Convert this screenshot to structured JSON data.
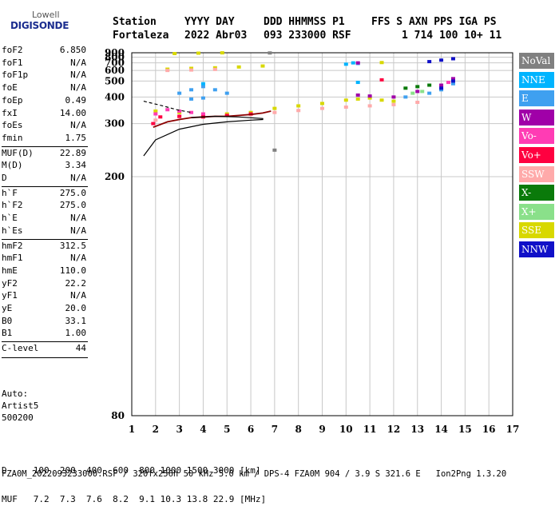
{
  "logo": {
    "line1": "Lowell",
    "line2": "DIGISONDE"
  },
  "header": {
    "labels": [
      "Station",
      "YYYY DAY",
      "DDD HHMMSS P1",
      "FFS S AXN PPS IGA PS"
    ],
    "values": [
      "Fortaleza",
      "2022 Abr03",
      "093 233000 RSF",
      "1 714 100 10+ 11"
    ]
  },
  "params": [
    {
      "label": "foF2",
      "value": "6.850"
    },
    {
      "label": "foF1",
      "value": "N/A"
    },
    {
      "label": "foF1p",
      "value": "N/A"
    },
    {
      "label": "foE",
      "value": "N/A"
    },
    {
      "label": "foEp",
      "value": "0.49"
    },
    {
      "label": "fxI",
      "value": "14.00"
    },
    {
      "label": "foEs",
      "value": "N/A"
    },
    {
      "label": "fmin",
      "value": "1.75"
    },
    {
      "label": "MUF(D)",
      "value": "22.89"
    },
    {
      "label": "M(D)",
      "value": "3.34"
    },
    {
      "label": "D",
      "value": "N/A"
    },
    {
      "label": "h`F",
      "value": "275.0"
    },
    {
      "label": "h`F2",
      "value": "275.0"
    },
    {
      "label": "h`E",
      "value": "N/A"
    },
    {
      "label": "h`Es",
      "value": "N/A"
    },
    {
      "label": "hmF2",
      "value": "312.5"
    },
    {
      "label": "hmF1",
      "value": "N/A"
    },
    {
      "label": "hmE",
      "value": "110.0"
    },
    {
      "label": "yF2",
      "value": "22.2"
    },
    {
      "label": "yF1",
      "value": "N/A"
    },
    {
      "label": "yE",
      "value": "20.0"
    },
    {
      "label": "B0",
      "value": "33.1"
    },
    {
      "label": "B1",
      "value": "1.00"
    },
    {
      "label": "C-level",
      "value": "44"
    }
  ],
  "auto": {
    "line1": "Auto:",
    "line2": "Artist5",
    "line3": "500200"
  },
  "legend": [
    {
      "label": "NoVal",
      "color": "#808080"
    },
    {
      "label": "NNE",
      "color": "#00b4ff"
    },
    {
      "label": "E",
      "color": "#3fa0f0"
    },
    {
      "label": "W",
      "color": "#a000a8"
    },
    {
      "label": "Vo-",
      "color": "#ff3cb4"
    },
    {
      "label": "Vo+",
      "color": "#ff0040"
    },
    {
      "label": "SSW",
      "color": "#ffaaaa"
    },
    {
      "label": "X-",
      "color": "#0a7a0a"
    },
    {
      "label": "X+",
      "color": "#8ae08a"
    },
    {
      "label": "SSE",
      "color": "#d8d800"
    },
    {
      "label": "NNW",
      "color": "#1010c8"
    }
  ],
  "bottom": {
    "d_line": "D     100  200  400  600  800 1000 1500 3000 [km]",
    "muf_line": "MUF   7.2  7.3  7.6  8.2  9.1 10.3 13.8 22.9 [MHz]"
  },
  "footer": "FZA0M_2022093233000.RSF / 320fx256h 50 kHz 5.0 km / DPS-4 FZA0M 904 / 3.9 S 321.6 E   Ion2Png 1.3.20",
  "chart_data": {
    "type": "scatter",
    "title": "",
    "xlabel": "",
    "ylabel": "",
    "xlim": [
      1,
      17
    ],
    "ylim": [
      80,
      900
    ],
    "y_scale": "reciprocal",
    "xticks": [
      1,
      2,
      3,
      4,
      5,
      6,
      7,
      8,
      9,
      10,
      11,
      12,
      13,
      14,
      15,
      16,
      17
    ],
    "yticks": [
      80,
      200,
      300,
      400,
      500,
      600,
      700,
      800,
      900
    ],
    "grid": true,
    "series": [
      {
        "name": "SSE",
        "color": "#d8d800",
        "points": [
          [
            2.0,
            340
          ],
          [
            3.0,
            335
          ],
          [
            4.0,
            330
          ],
          [
            5.0,
            330
          ],
          [
            6.0,
            335
          ],
          [
            7.0,
            350
          ],
          [
            8.0,
            360
          ],
          [
            9.0,
            370
          ],
          [
            10.0,
            385
          ],
          [
            10.5,
            390
          ],
          [
            11.0,
            395
          ],
          [
            11.5,
            385
          ],
          [
            12.0,
            380
          ],
          [
            2.5,
            615
          ],
          [
            3.5,
            625
          ],
          [
            4.5,
            632
          ],
          [
            5.5,
            642
          ],
          [
            6.5,
            655
          ],
          [
            2.8,
            880
          ],
          [
            3.8,
            890
          ],
          [
            4.8,
            898
          ],
          [
            11.5,
            705
          ]
        ]
      },
      {
        "name": "SSW",
        "color": "#ffaaaa",
        "points": [
          [
            2.0,
            310
          ],
          [
            3.0,
            320
          ],
          [
            4.0,
            325
          ],
          [
            5.0,
            325
          ],
          [
            6.0,
            328
          ],
          [
            7.0,
            335
          ],
          [
            8.0,
            342
          ],
          [
            9.0,
            350
          ],
          [
            10.0,
            355
          ],
          [
            11.0,
            360
          ],
          [
            12.0,
            365
          ],
          [
            13.0,
            375
          ],
          [
            2.5,
            600
          ],
          [
            3.5,
            605
          ],
          [
            4.5,
            612
          ]
        ]
      },
      {
        "name": "E",
        "color": "#3fa0f0",
        "points": [
          [
            3.0,
            420
          ],
          [
            3.5,
            440
          ],
          [
            4.0,
            460
          ],
          [
            4.5,
            440
          ],
          [
            5.0,
            420
          ],
          [
            3.5,
            390
          ],
          [
            4.0,
            395
          ],
          [
            10.5,
            690
          ],
          [
            12.5,
            400
          ],
          [
            13.5,
            420
          ],
          [
            14.0,
            440
          ],
          [
            14.5,
            480
          ]
        ]
      },
      {
        "name": "NNE",
        "color": "#00b4ff",
        "points": [
          [
            4.0,
            480
          ],
          [
            10.0,
            680
          ],
          [
            10.3,
            700
          ],
          [
            10.5,
            490
          ]
        ]
      },
      {
        "name": "W",
        "color": "#a000a8",
        "points": [
          [
            10.5,
            410
          ],
          [
            11.0,
            405
          ],
          [
            12.0,
            400
          ],
          [
            13.0,
            430
          ],
          [
            14.0,
            470
          ],
          [
            14.5,
            520
          ],
          [
            10.5,
            700
          ]
        ]
      },
      {
        "name": "Vo-",
        "color": "#ff3cb4",
        "points": [
          [
            2.0,
            330
          ],
          [
            2.5,
            345
          ],
          [
            3.0,
            340
          ],
          [
            3.5,
            335
          ],
          [
            4.0,
            330
          ],
          [
            14.3,
            490
          ]
        ]
      },
      {
        "name": "Vo+",
        "color": "#ff0040",
        "points": [
          [
            1.9,
            300
          ],
          [
            2.2,
            320
          ],
          [
            3.0,
            322
          ],
          [
            4.0,
            320
          ],
          [
            5.0,
            325
          ],
          [
            6.0,
            330
          ],
          [
            11.5,
            510
          ]
        ]
      },
      {
        "name": "X-",
        "color": "#0a7a0a",
        "points": [
          [
            12.5,
            450
          ],
          [
            13.0,
            460
          ],
          [
            13.5,
            470
          ]
        ]
      },
      {
        "name": "X+",
        "color": "#8ae08a",
        "points": [
          [
            12.8,
            420
          ],
          [
            13.2,
            430
          ]
        ]
      },
      {
        "name": "NNW",
        "color": "#1010c8",
        "points": [
          [
            13.5,
            720
          ],
          [
            14.0,
            745
          ],
          [
            14.5,
            770
          ],
          [
            14.0,
            450
          ],
          [
            14.5,
            500
          ]
        ]
      },
      {
        "name": "NoVal",
        "color": "#808080",
        "points": [
          [
            7.0,
            240
          ],
          [
            6.8,
            895
          ]
        ]
      }
    ],
    "profile_curves": [
      {
        "color": "#8b0000",
        "points": [
          [
            1.9,
            290
          ],
          [
            2.5,
            305
          ],
          [
            3.0,
            312
          ],
          [
            3.5,
            318
          ],
          [
            4.0,
            320
          ],
          [
            4.5,
            322
          ],
          [
            5.0,
            322
          ],
          [
            5.5,
            325
          ],
          [
            6.0,
            328
          ],
          [
            6.5,
            333
          ],
          [
            6.85,
            340
          ]
        ]
      },
      {
        "color": "#000000",
        "points": [
          [
            1.5,
            230
          ],
          [
            2.0,
            260
          ],
          [
            3.0,
            285
          ],
          [
            4.0,
            298
          ],
          [
            5.0,
            305
          ],
          [
            6.0,
            310
          ],
          [
            6.5,
            312
          ],
          [
            6.5,
            315
          ],
          [
            5.5,
            320
          ],
          [
            4.5,
            322
          ],
          [
            3.5,
            318
          ]
        ]
      },
      {
        "color": "#000000",
        "dashed": true,
        "points": [
          [
            1.5,
            380
          ],
          [
            2.3,
            360
          ],
          [
            2.9,
            345
          ],
          [
            3.5,
            335
          ]
        ]
      }
    ]
  }
}
